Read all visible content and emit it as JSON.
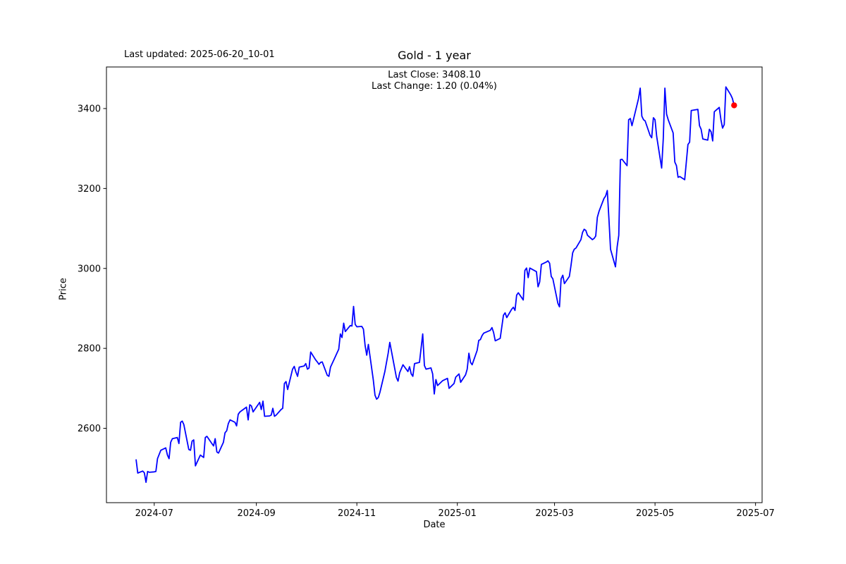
{
  "header": {
    "last_updated": "Last updated: 2025-06-20_10-01"
  },
  "chart_data": {
    "type": "line",
    "title": "Gold - 1 year",
    "annotation": [
      "Last Close: 3408.10",
      "Last Change: 1.20 (0.04%)"
    ],
    "last_close": 3408.1,
    "last_change": 1.2,
    "last_change_pct": "0.04%",
    "xlabel": "Date",
    "ylabel": "Price",
    "grid": false,
    "legend": false,
    "line_color": "#0000ff",
    "marker_color": "#ff0000",
    "xlim": [
      "2024-06-02",
      "2025-07-05"
    ],
    "ylim": [
      2414,
      3504
    ],
    "x_ticks": [
      {
        "date": "2024-07-01",
        "label": "2024-07"
      },
      {
        "date": "2024-09-01",
        "label": "2024-09"
      },
      {
        "date": "2024-11-01",
        "label": "2024-11"
      },
      {
        "date": "2025-01-01",
        "label": "2025-01"
      },
      {
        "date": "2025-03-01",
        "label": "2025-03"
      },
      {
        "date": "2025-05-01",
        "label": "2025-05"
      },
      {
        "date": "2025-07-01",
        "label": "2025-07"
      }
    ],
    "y_ticks": [
      2600,
      2800,
      3000,
      3200,
      3400
    ],
    "series": [
      {
        "name": "Gold",
        "points": [
          [
            "2024-06-20",
            2521
          ],
          [
            "2024-06-21",
            2488
          ],
          [
            "2024-06-24",
            2493
          ],
          [
            "2024-06-25",
            2489
          ],
          [
            "2024-06-26",
            2465
          ],
          [
            "2024-06-27",
            2492
          ],
          [
            "2024-06-28",
            2490
          ],
          [
            "2024-07-01",
            2491
          ],
          [
            "2024-07-02",
            2492
          ],
          [
            "2024-07-03",
            2524
          ],
          [
            "2024-07-05",
            2545
          ],
          [
            "2024-07-08",
            2551
          ],
          [
            "2024-07-09",
            2533
          ],
          [
            "2024-07-10",
            2524
          ],
          [
            "2024-07-11",
            2565
          ],
          [
            "2024-07-12",
            2574
          ],
          [
            "2024-07-15",
            2577
          ],
          [
            "2024-07-16",
            2562
          ],
          [
            "2024-07-17",
            2615
          ],
          [
            "2024-07-18",
            2618
          ],
          [
            "2024-07-19",
            2609
          ],
          [
            "2024-07-22",
            2547
          ],
          [
            "2024-07-23",
            2545
          ],
          [
            "2024-07-24",
            2568
          ],
          [
            "2024-07-25",
            2571
          ],
          [
            "2024-07-26",
            2506
          ],
          [
            "2024-07-29",
            2533
          ],
          [
            "2024-07-30",
            2530
          ],
          [
            "2024-07-31",
            2527
          ],
          [
            "2024-08-01",
            2577
          ],
          [
            "2024-08-02",
            2580
          ],
          [
            "2024-08-05",
            2562
          ],
          [
            "2024-08-06",
            2556
          ],
          [
            "2024-08-07",
            2574
          ],
          [
            "2024-08-08",
            2541
          ],
          [
            "2024-08-09",
            2538
          ],
          [
            "2024-08-12",
            2565
          ],
          [
            "2024-08-13",
            2589
          ],
          [
            "2024-08-14",
            2594
          ],
          [
            "2024-08-15",
            2612
          ],
          [
            "2024-08-16",
            2621
          ],
          [
            "2024-08-19",
            2615
          ],
          [
            "2024-08-20",
            2606
          ],
          [
            "2024-08-21",
            2635
          ],
          [
            "2024-08-22",
            2641
          ],
          [
            "2024-08-23",
            2644
          ],
          [
            "2024-08-26",
            2653
          ],
          [
            "2024-08-27",
            2621
          ],
          [
            "2024-08-28",
            2659
          ],
          [
            "2024-08-29",
            2656
          ],
          [
            "2024-08-30",
            2641
          ],
          [
            "2024-09-03",
            2665
          ],
          [
            "2024-09-04",
            2647
          ],
          [
            "2024-09-05",
            2668
          ],
          [
            "2024-09-06",
            2630
          ],
          [
            "2024-09-09",
            2631
          ],
          [
            "2024-09-10",
            2633
          ],
          [
            "2024-09-11",
            2650
          ],
          [
            "2024-09-12",
            2630
          ],
          [
            "2024-09-13",
            2633
          ],
          [
            "2024-09-16",
            2647
          ],
          [
            "2024-09-17",
            2650
          ],
          [
            "2024-09-18",
            2712
          ],
          [
            "2024-09-19",
            2717
          ],
          [
            "2024-09-20",
            2697
          ],
          [
            "2024-09-23",
            2748
          ],
          [
            "2024-09-24",
            2755
          ],
          [
            "2024-09-25",
            2741
          ],
          [
            "2024-09-26",
            2730
          ],
          [
            "2024-09-27",
            2753
          ],
          [
            "2024-09-30",
            2756
          ],
          [
            "2024-10-01",
            2762
          ],
          [
            "2024-10-02",
            2748
          ],
          [
            "2024-10-03",
            2751
          ],
          [
            "2024-10-04",
            2791
          ],
          [
            "2024-10-07",
            2771
          ],
          [
            "2024-10-08",
            2766
          ],
          [
            "2024-10-09",
            2760
          ],
          [
            "2024-10-10",
            2765
          ],
          [
            "2024-10-11",
            2766
          ],
          [
            "2024-10-14",
            2733
          ],
          [
            "2024-10-15",
            2730
          ],
          [
            "2024-10-16",
            2753
          ],
          [
            "2024-10-17",
            2762
          ],
          [
            "2024-10-18",
            2771
          ],
          [
            "2024-10-21",
            2798
          ],
          [
            "2024-10-22",
            2836
          ],
          [
            "2024-10-23",
            2827
          ],
          [
            "2024-10-24",
            2863
          ],
          [
            "2024-10-25",
            2842
          ],
          [
            "2024-10-28",
            2857
          ],
          [
            "2024-10-29",
            2856
          ],
          [
            "2024-10-30",
            2905
          ],
          [
            "2024-10-31",
            2860
          ],
          [
            "2024-11-01",
            2854
          ],
          [
            "2024-11-04",
            2855
          ],
          [
            "2024-11-05",
            2848
          ],
          [
            "2024-11-06",
            2807
          ],
          [
            "2024-11-07",
            2783
          ],
          [
            "2024-11-08",
            2810
          ],
          [
            "2024-11-11",
            2721
          ],
          [
            "2024-11-12",
            2683
          ],
          [
            "2024-11-13",
            2673
          ],
          [
            "2024-11-14",
            2677
          ],
          [
            "2024-11-15",
            2690
          ],
          [
            "2024-11-18",
            2742
          ],
          [
            "2024-11-20",
            2788
          ],
          [
            "2024-11-21",
            2815
          ],
          [
            "2024-11-25",
            2727
          ],
          [
            "2024-11-26",
            2718
          ],
          [
            "2024-11-27",
            2739
          ],
          [
            "2024-11-29",
            2759
          ],
          [
            "2024-12-02",
            2742
          ],
          [
            "2024-12-03",
            2754
          ],
          [
            "2024-12-04",
            2736
          ],
          [
            "2024-12-05",
            2730
          ],
          [
            "2024-12-06",
            2762
          ],
          [
            "2024-12-09",
            2765
          ],
          [
            "2024-12-11",
            2836
          ],
          [
            "2024-12-12",
            2757
          ],
          [
            "2024-12-13",
            2748
          ],
          [
            "2024-12-16",
            2751
          ],
          [
            "2024-12-17",
            2736
          ],
          [
            "2024-12-18",
            2686
          ],
          [
            "2024-12-19",
            2722
          ],
          [
            "2024-12-20",
            2707
          ],
          [
            "2024-12-23",
            2719
          ],
          [
            "2024-12-26",
            2725
          ],
          [
            "2024-12-27",
            2700
          ],
          [
            "2024-12-30",
            2712
          ],
          [
            "2024-12-31",
            2728
          ],
          [
            "2025-01-02",
            2736
          ],
          [
            "2025-01-03",
            2715
          ],
          [
            "2025-01-06",
            2734
          ],
          [
            "2025-01-07",
            2748
          ],
          [
            "2025-01-08",
            2788
          ],
          [
            "2025-01-09",
            2765
          ],
          [
            "2025-01-10",
            2759
          ],
          [
            "2025-01-13",
            2795
          ],
          [
            "2025-01-14",
            2820
          ],
          [
            "2025-01-15",
            2822
          ],
          [
            "2025-01-16",
            2832
          ],
          [
            "2025-01-17",
            2838
          ],
          [
            "2025-01-21",
            2845
          ],
          [
            "2025-01-22",
            2852
          ],
          [
            "2025-01-23",
            2840
          ],
          [
            "2025-01-24",
            2819
          ],
          [
            "2025-01-27",
            2825
          ],
          [
            "2025-01-29",
            2883
          ],
          [
            "2025-01-30",
            2889
          ],
          [
            "2025-01-31",
            2877
          ],
          [
            "2025-02-03",
            2898
          ],
          [
            "2025-02-04",
            2903
          ],
          [
            "2025-02-05",
            2895
          ],
          [
            "2025-02-06",
            2933
          ],
          [
            "2025-02-07",
            2939
          ],
          [
            "2025-02-10",
            2921
          ],
          [
            "2025-02-11",
            2995
          ],
          [
            "2025-02-12",
            3001
          ],
          [
            "2025-02-13",
            2977
          ],
          [
            "2025-02-14",
            3001
          ],
          [
            "2025-02-18",
            2992
          ],
          [
            "2025-02-19",
            2954
          ],
          [
            "2025-02-20",
            2966
          ],
          [
            "2025-02-21",
            3010
          ],
          [
            "2025-02-24",
            3016
          ],
          [
            "2025-02-25",
            3019
          ],
          [
            "2025-02-26",
            3013
          ],
          [
            "2025-02-27",
            2980
          ],
          [
            "2025-02-28",
            2974
          ],
          [
            "2025-03-03",
            2913
          ],
          [
            "2025-03-04",
            2904
          ],
          [
            "2025-03-05",
            2974
          ],
          [
            "2025-03-06",
            2983
          ],
          [
            "2025-03-07",
            2962
          ],
          [
            "2025-03-10",
            2980
          ],
          [
            "2025-03-11",
            3007
          ],
          [
            "2025-03-12",
            3039
          ],
          [
            "2025-03-13",
            3048
          ],
          [
            "2025-03-14",
            3051
          ],
          [
            "2025-03-17",
            3072
          ],
          [
            "2025-03-18",
            3090
          ],
          [
            "2025-03-19",
            3098
          ],
          [
            "2025-03-20",
            3095
          ],
          [
            "2025-03-21",
            3083
          ],
          [
            "2025-03-24",
            3072
          ],
          [
            "2025-03-25",
            3075
          ],
          [
            "2025-03-26",
            3081
          ],
          [
            "2025-03-27",
            3128
          ],
          [
            "2025-03-28",
            3143
          ],
          [
            "2025-03-31",
            3175
          ],
          [
            "2025-04-01",
            3181
          ],
          [
            "2025-04-02",
            3195
          ],
          [
            "2025-04-03",
            3125
          ],
          [
            "2025-04-04",
            3048
          ],
          [
            "2025-04-07",
            3004
          ],
          [
            "2025-04-08",
            3054
          ],
          [
            "2025-04-09",
            3083
          ],
          [
            "2025-04-10",
            3272
          ],
          [
            "2025-04-11",
            3273
          ],
          [
            "2025-04-14",
            3257
          ],
          [
            "2025-04-15",
            3372
          ],
          [
            "2025-04-16",
            3375
          ],
          [
            "2025-04-17",
            3357
          ],
          [
            "2025-04-21",
            3425
          ],
          [
            "2025-04-22",
            3451
          ],
          [
            "2025-04-23",
            3381
          ],
          [
            "2025-04-24",
            3372
          ],
          [
            "2025-04-25",
            3369
          ],
          [
            "2025-04-28",
            3333
          ],
          [
            "2025-04-29",
            3327
          ],
          [
            "2025-04-30",
            3377
          ],
          [
            "2025-05-01",
            3372
          ],
          [
            "2025-05-02",
            3330
          ],
          [
            "2025-05-05",
            3251
          ],
          [
            "2025-05-06",
            3324
          ],
          [
            "2025-05-07",
            3451
          ],
          [
            "2025-05-08",
            3386
          ],
          [
            "2025-05-09",
            3372
          ],
          [
            "2025-05-12",
            3339
          ],
          [
            "2025-05-13",
            3266
          ],
          [
            "2025-05-14",
            3257
          ],
          [
            "2025-05-15",
            3228
          ],
          [
            "2025-05-16",
            3230
          ],
          [
            "2025-05-19",
            3222
          ],
          [
            "2025-05-20",
            3266
          ],
          [
            "2025-05-21",
            3310
          ],
          [
            "2025-05-22",
            3316
          ],
          [
            "2025-05-23",
            3395
          ],
          [
            "2025-05-27",
            3398
          ],
          [
            "2025-05-28",
            3357
          ],
          [
            "2025-05-29",
            3348
          ],
          [
            "2025-05-30",
            3324
          ],
          [
            "2025-06-02",
            3321
          ],
          [
            "2025-06-03",
            3348
          ],
          [
            "2025-06-04",
            3342
          ],
          [
            "2025-06-05",
            3319
          ],
          [
            "2025-06-06",
            3392
          ],
          [
            "2025-06-09",
            3403
          ],
          [
            "2025-06-10",
            3372
          ],
          [
            "2025-06-11",
            3351
          ],
          [
            "2025-06-12",
            3360
          ],
          [
            "2025-06-13",
            3454
          ],
          [
            "2025-06-16",
            3434
          ],
          [
            "2025-06-17",
            3425
          ],
          [
            "2025-06-18",
            3408.1
          ]
        ]
      }
    ]
  }
}
